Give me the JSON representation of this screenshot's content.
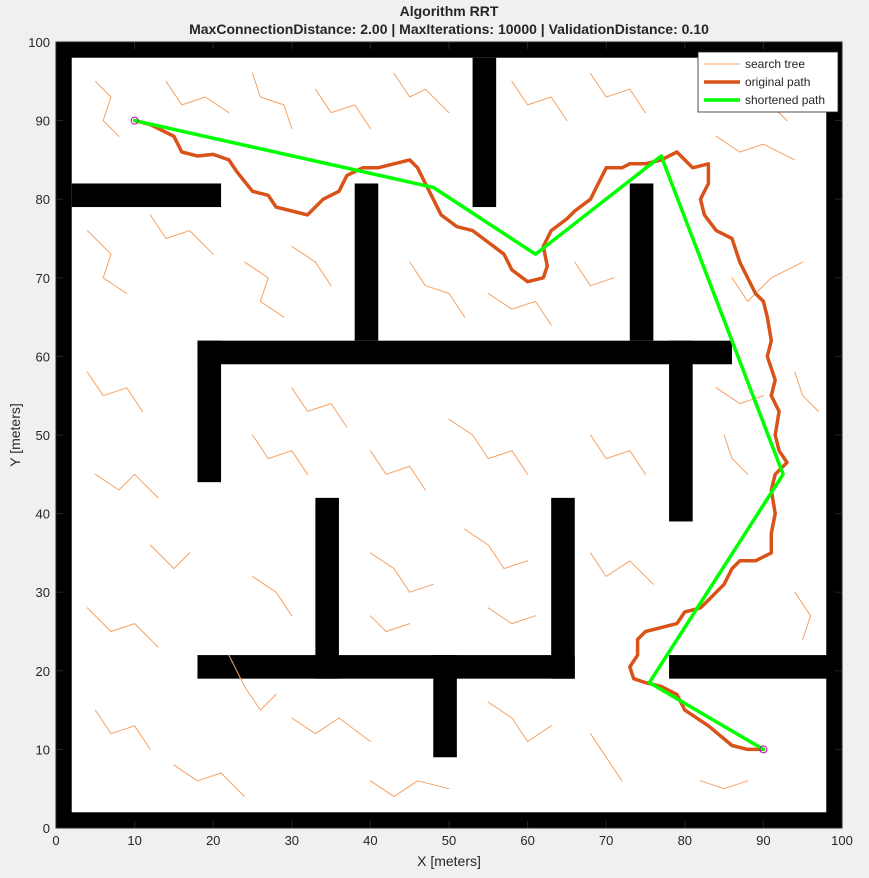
{
  "chart_data": {
    "type": "line",
    "title": "Algorithm RRT",
    "subtitle": "MaxConnectionDistance: 2.00 | MaxIterations: 10000 | ValidationDistance: 0.10",
    "xlabel": "X [meters]",
    "ylabel": "Y [meters]",
    "xlim": [
      0,
      100
    ],
    "ylim": [
      0,
      100
    ],
    "xticks": [
      0,
      10,
      20,
      30,
      40,
      50,
      60,
      70,
      80,
      90,
      100
    ],
    "yticks": [
      0,
      10,
      20,
      30,
      40,
      50,
      60,
      70,
      80,
      90,
      100
    ],
    "legend": "upper right",
    "obstacle_color": "#000000",
    "marker_color": "#c000c0",
    "obstacles": [
      [
        0,
        0,
        100,
        2
      ],
      [
        0,
        98,
        100,
        100
      ],
      [
        0,
        0,
        2,
        100
      ],
      [
        98,
        0,
        100,
        100
      ],
      [
        2,
        79,
        21,
        82
      ],
      [
        53,
        79,
        56,
        98
      ],
      [
        38,
        62,
        41,
        82
      ],
      [
        73,
        62,
        76,
        82
      ],
      [
        18,
        59,
        86,
        62
      ],
      [
        18,
        44,
        21,
        62
      ],
      [
        78,
        39,
        81,
        62
      ],
      [
        33,
        19,
        36,
        42
      ],
      [
        63,
        19,
        66,
        42
      ],
      [
        18,
        19,
        66,
        22
      ],
      [
        48,
        9,
        51,
        22
      ],
      [
        78,
        19,
        100,
        22
      ]
    ],
    "series": [
      {
        "name": "search tree",
        "color": "#f5a263",
        "width": 1,
        "x": [
          5,
          7,
          6,
          8,
          null,
          14,
          16,
          19,
          22,
          null,
          25,
          26,
          29,
          30,
          null,
          33,
          35,
          38,
          40,
          null,
          43,
          45,
          47,
          50,
          null,
          58,
          60,
          63,
          65,
          null,
          68,
          70,
          73,
          75,
          null,
          85,
          87,
          90,
          93,
          null,
          4,
          7,
          6,
          9,
          null,
          12,
          14,
          17,
          20,
          null,
          24,
          27,
          26,
          29,
          null,
          30,
          33,
          35,
          null,
          45,
          47,
          50,
          52,
          null,
          55,
          58,
          61,
          63,
          null,
          66,
          68,
          71,
          null,
          84,
          87,
          90,
          94,
          null,
          86,
          88,
          91,
          95,
          null,
          84,
          87,
          90,
          null,
          94,
          95,
          97,
          null,
          4,
          6,
          9,
          11,
          null,
          5,
          8,
          10,
          13,
          null,
          12,
          15,
          17,
          null,
          4,
          7,
          10,
          13,
          null,
          5,
          7,
          10,
          12,
          null,
          15,
          18,
          21,
          24,
          null,
          25,
          28,
          30,
          null,
          25,
          27,
          30,
          32,
          null,
          30,
          32,
          35,
          37,
          null,
          40,
          42,
          45,
          47,
          null,
          50,
          53,
          55,
          58,
          60,
          null,
          40,
          43,
          45,
          48,
          null,
          52,
          55,
          57,
          60,
          null,
          40,
          42,
          45,
          null,
          55,
          58,
          61,
          null,
          30,
          33,
          36,
          40,
          null,
          55,
          58,
          60,
          63,
          null,
          68,
          70,
          73,
          76,
          null,
          68,
          70,
          73,
          75,
          null,
          85,
          86,
          88,
          null,
          94,
          96,
          95,
          null,
          68,
          70,
          72,
          null,
          82,
          85,
          88,
          null,
          40,
          43,
          46,
          50,
          null,
          22,
          24,
          26,
          28
        ],
        "y": [
          95,
          93,
          90,
          88,
          null,
          95,
          92,
          93,
          91,
          null,
          96,
          93,
          92,
          89,
          null,
          94,
          91,
          92,
          89,
          null,
          96,
          93,
          94,
          91,
          null,
          95,
          92,
          93,
          90,
          null,
          96,
          93,
          94,
          91,
          null,
          95,
          92,
          93,
          90,
          null,
          76,
          73,
          70,
          68,
          null,
          78,
          75,
          76,
          73,
          null,
          72,
          70,
          67,
          65,
          null,
          74,
          72,
          69,
          null,
          72,
          69,
          68,
          65,
          null,
          68,
          66,
          67,
          64,
          null,
          72,
          69,
          70,
          null,
          88,
          86,
          87,
          85,
          null,
          70,
          67,
          70,
          72,
          null,
          56,
          54,
          55,
          null,
          58,
          55,
          53,
          null,
          58,
          55,
          56,
          53,
          null,
          45,
          43,
          45,
          42,
          null,
          36,
          33,
          35,
          null,
          28,
          25,
          26,
          23,
          null,
          15,
          12,
          13,
          10,
          null,
          8,
          6,
          7,
          4,
          null,
          32,
          30,
          27,
          null,
          50,
          47,
          48,
          45,
          null,
          56,
          53,
          54,
          51,
          null,
          48,
          45,
          46,
          43,
          null,
          52,
          50,
          47,
          48,
          45,
          null,
          35,
          33,
          30,
          31,
          null,
          38,
          36,
          33,
          34,
          null,
          27,
          25,
          26,
          null,
          28,
          26,
          27,
          null,
          14,
          12,
          14,
          11,
          null,
          16,
          14,
          11,
          13,
          null,
          35,
          32,
          34,
          31,
          null,
          50,
          47,
          48,
          45,
          null,
          50,
          47,
          45,
          null,
          30,
          27,
          24,
          null,
          12,
          9,
          6,
          null,
          6,
          5,
          6,
          null,
          6,
          4,
          6,
          5,
          null,
          22,
          18,
          15,
          17
        ]
      },
      {
        "name": "original path",
        "color": "#d95319",
        "width": 3.5,
        "x": [
          10,
          12,
          15,
          16,
          18,
          20,
          22,
          23,
          25,
          27,
          28,
          30,
          32,
          34,
          36,
          37,
          39,
          41,
          43,
          45,
          46,
          47,
          48,
          49,
          51,
          53,
          55,
          57,
          58,
          60,
          62,
          62.5,
          62,
          63,
          65,
          66,
          68,
          69,
          70,
          72,
          73,
          75,
          77,
          79,
          80,
          81,
          83,
          83,
          82,
          82.5,
          84,
          86,
          87,
          89,
          90,
          90.5,
          91,
          90.5,
          91.5,
          91,
          92,
          91.5,
          92,
          93,
          91.5,
          91,
          91.5,
          91,
          91,
          89,
          87,
          86,
          85,
          83,
          82,
          80,
          79,
          77,
          75,
          74,
          74,
          73,
          73.5,
          75,
          77,
          79,
          80,
          83,
          86,
          88,
          90
        ],
        "y": [
          90,
          89.5,
          88,
          86,
          85.5,
          85.7,
          85,
          83.5,
          81,
          80.5,
          79,
          78.5,
          78,
          80,
          81,
          83,
          84,
          84,
          84.5,
          85,
          84,
          82,
          80,
          78,
          76.5,
          76,
          74.5,
          73,
          71,
          69.5,
          70,
          71.5,
          74,
          76,
          77.5,
          78.5,
          80,
          82,
          84,
          84,
          84.5,
          84.5,
          85,
          86,
          85,
          84,
          84.5,
          82,
          80,
          78,
          76,
          75,
          72,
          68,
          67,
          65,
          62,
          60,
          57,
          55,
          53,
          50,
          48,
          46.5,
          45,
          43,
          40,
          37.5,
          35,
          34,
          34,
          33,
          31,
          29,
          28,
          27.5,
          26,
          25.5,
          25,
          24,
          22,
          20.5,
          19,
          18.5,
          18,
          17,
          15,
          13,
          10.5,
          10,
          10
        ]
      },
      {
        "name": "shortened path",
        "color": "#00ff00",
        "width": 3.5,
        "x": [
          10,
          48,
          61,
          77,
          92.5,
          75.5,
          90
        ],
        "y": [
          90,
          81.5,
          73,
          85.5,
          45,
          18.5,
          10
        ]
      }
    ]
  }
}
